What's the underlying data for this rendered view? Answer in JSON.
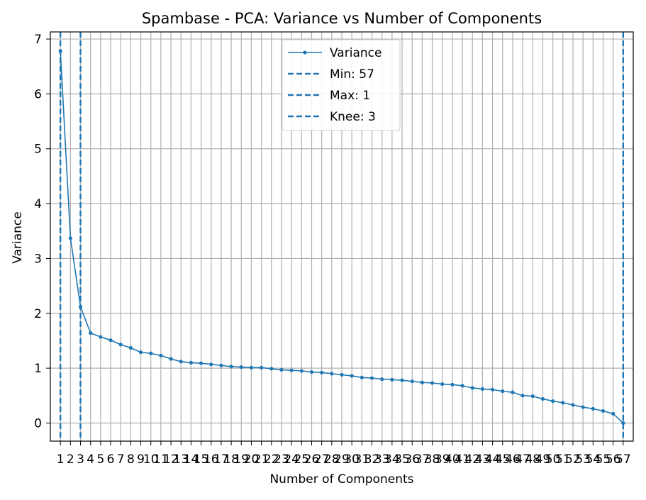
{
  "chart_data": {
    "type": "line",
    "title": "Spambase - PCA: Variance vs Number of Components",
    "xlabel": "Number of Components",
    "ylabel": "Variance",
    "x": [
      1,
      2,
      3,
      4,
      5,
      6,
      7,
      8,
      9,
      10,
      11,
      12,
      13,
      14,
      15,
      16,
      17,
      18,
      19,
      20,
      21,
      22,
      23,
      24,
      25,
      26,
      27,
      28,
      29,
      30,
      31,
      32,
      33,
      34,
      35,
      36,
      37,
      38,
      39,
      40,
      41,
      42,
      43,
      44,
      45,
      46,
      47,
      48,
      49,
      50,
      51,
      52,
      53,
      54,
      55,
      56,
      57
    ],
    "xlim": [
      0,
      58
    ],
    "ylim": [
      -0.33,
      7.13
    ],
    "yticks": [
      0,
      1,
      2,
      3,
      4,
      5,
      6,
      7
    ],
    "grid": true,
    "legend_position": "top-center",
    "series": [
      {
        "name": "Variance",
        "color": "#1f77b4",
        "values": [
          6.78,
          3.37,
          2.12,
          1.64,
          1.57,
          1.51,
          1.43,
          1.37,
          1.29,
          1.27,
          1.23,
          1.17,
          1.12,
          1.1,
          1.09,
          1.07,
          1.05,
          1.03,
          1.02,
          1.01,
          1.01,
          0.99,
          0.97,
          0.96,
          0.95,
          0.93,
          0.92,
          0.9,
          0.88,
          0.86,
          0.83,
          0.82,
          0.8,
          0.79,
          0.78,
          0.76,
          0.74,
          0.73,
          0.71,
          0.7,
          0.68,
          0.64,
          0.62,
          0.61,
          0.58,
          0.56,
          0.5,
          0.49,
          0.44,
          0.4,
          0.37,
          0.33,
          0.29,
          0.26,
          0.22,
          0.17,
          0.0
        ]
      }
    ],
    "vlines": [
      {
        "label": "Min: 57",
        "x": 57,
        "color": "#1f77b4",
        "style": "dashed"
      },
      {
        "label": "Max: 1",
        "x": 1,
        "color": "#1f77b4",
        "style": "dashed"
      },
      {
        "label": "Knee: 3",
        "x": 3,
        "color": "#1f77b4",
        "style": "dashed"
      }
    ]
  }
}
